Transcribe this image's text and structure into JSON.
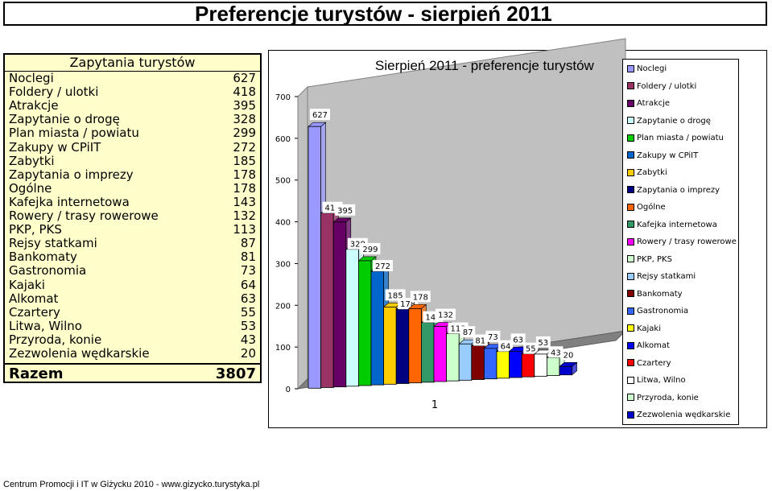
{
  "page_title": "Preferencje turystów - sierpień 2011",
  "table": {
    "header": "Zapytania turystów",
    "rows": [
      {
        "label": "Noclegi",
        "value": "627"
      },
      {
        "label": "Foldery / ulotki",
        "value": "418"
      },
      {
        "label": "Atrakcje",
        "value": "395"
      },
      {
        "label": "Zapytanie o drogę",
        "value": "328"
      },
      {
        "label": "Plan miasta / powiatu",
        "value": "299"
      },
      {
        "label": "Zakupy w CPiIT",
        "value": "272"
      },
      {
        "label": "Zabytki",
        "value": "185"
      },
      {
        "label": "Zapytania o imprezy",
        "value": "178"
      },
      {
        "label": "Ogólne",
        "value": "178"
      },
      {
        "label": "Kafejka internetowa",
        "value": "143"
      },
      {
        "label": "Rowery / trasy rowerowe",
        "value": "132"
      },
      {
        "label": "PKP, PKS",
        "value": "113"
      },
      {
        "label": "Rejsy statkami",
        "value": "87"
      },
      {
        "label": "Bankomaty",
        "value": "81"
      },
      {
        "label": "Gastronomia",
        "value": "73"
      },
      {
        "label": "Kajaki",
        "value": "64"
      },
      {
        "label": "Alkomat",
        "value": "63"
      },
      {
        "label": "Czartery",
        "value": "55"
      },
      {
        "label": "Litwa, Wilno",
        "value": "53"
      },
      {
        "label": "Przyroda, konie",
        "value": "43"
      },
      {
        "label": "Zezwolenia wędkarskie",
        "value": "20"
      }
    ],
    "total_label": "Razem",
    "total_value": "3807"
  },
  "chart_data": {
    "type": "bar",
    "title": "Sierpień 2011 - preferencje turystów",
    "categories": [
      "1"
    ],
    "ylim": [
      0,
      700
    ],
    "yticks": [
      "0",
      "100",
      "200",
      "300",
      "400",
      "500",
      "600",
      "700"
    ],
    "grid": false,
    "legend_position": "right",
    "series": [
      {
        "name": "Noclegi",
        "value": 627,
        "color": "#9999ff"
      },
      {
        "name": "Foldery / ulotki",
        "value": 418,
        "color": "#993366"
      },
      {
        "name": "Atrakcje",
        "value": 395,
        "color": "#660066"
      },
      {
        "name": "Zapytanie o drogę",
        "value": 328,
        "color": "#ccffff"
      },
      {
        "name": "Plan miasta / powiatu",
        "value": 299,
        "color": "#00cc00"
      },
      {
        "name": "Zakupy w CPiIT",
        "value": 272,
        "color": "#0066cc"
      },
      {
        "name": "Zabytki",
        "value": 185,
        "color": "#ffcc00"
      },
      {
        "name": "Zapytania o imprezy",
        "value": 178,
        "color": "#000080"
      },
      {
        "name": "Ogólne",
        "value": 178,
        "color": "#ff6600"
      },
      {
        "name": "Kafejka internetowa",
        "value": 143,
        "color": "#339966"
      },
      {
        "name": "Rowery / trasy rowerowe",
        "value": 132,
        "color": "#ff00ff"
      },
      {
        "name": "PKP, PKS",
        "value": 113,
        "color": "#ccffcc"
      },
      {
        "name": "Rejsy statkami",
        "value": 87,
        "color": "#99ccff"
      },
      {
        "name": "Bankomaty",
        "value": 81,
        "color": "#800000"
      },
      {
        "name": "Gastronomia",
        "value": 73,
        "color": "#3366ff"
      },
      {
        "name": "Kajaki",
        "value": 64,
        "color": "#ffff00"
      },
      {
        "name": "Alkomat",
        "value": 63,
        "color": "#0000ff"
      },
      {
        "name": "Czartery",
        "value": 55,
        "color": "#ff0000"
      },
      {
        "name": "Litwa, Wilno",
        "value": 53,
        "color": "#ffffff"
      },
      {
        "name": "Przyroda, konie",
        "value": 43,
        "color": "#ccffcc"
      },
      {
        "name": "Zezwolenia wędkarskie",
        "value": 20,
        "color": "#0000cc"
      }
    ]
  },
  "footer": "Centrum Promocji i IT w Giżycku 2010 - www.gizycko.turystyka.pl"
}
